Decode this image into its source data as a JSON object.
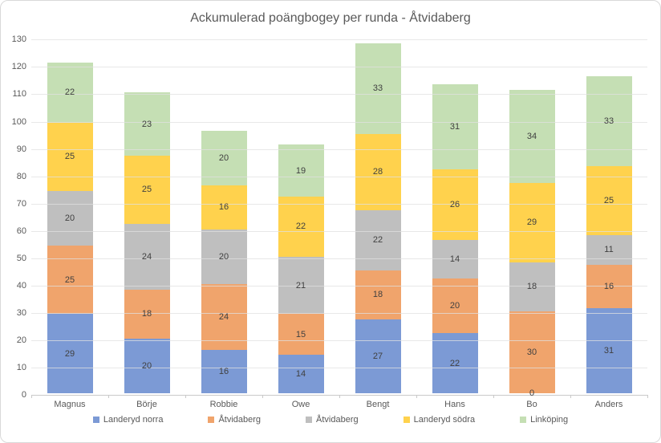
{
  "chart_data": {
    "type": "bar",
    "stacked": true,
    "title": "Ackumulerad poängbogey per runda - Åtvidaberg",
    "categories": [
      "Magnus",
      "Börje",
      "Robbie",
      "Owe",
      "Bengt",
      "Hans",
      "Bo",
      "Anders"
    ],
    "series": [
      {
        "name": "Landeryd norra",
        "color": "#7C9AD5",
        "values": [
          29,
          20,
          16,
          14,
          27,
          22,
          0,
          31
        ]
      },
      {
        "name": "Åtvidaberg",
        "color": "#F0A46C",
        "values": [
          25,
          18,
          24,
          15,
          18,
          20,
          30,
          16
        ]
      },
      {
        "name": "Åtvidaberg",
        "color": "#BFBFBF",
        "values": [
          20,
          24,
          20,
          21,
          22,
          14,
          18,
          11
        ]
      },
      {
        "name": "Landeryd södra",
        "color": "#FFD24D",
        "values": [
          25,
          25,
          16,
          22,
          28,
          26,
          29,
          25
        ]
      },
      {
        "name": "Linköping",
        "color": "#C5DFB4",
        "values": [
          22,
          23,
          20,
          19,
          33,
          31,
          34,
          33
        ]
      }
    ],
    "ylabel": "",
    "xlabel": "",
    "ylim": [
      0,
      130
    ],
    "ytick_step": 10,
    "yticks": [
      "0",
      "10",
      "20",
      "30",
      "40",
      "50",
      "60",
      "70",
      "80",
      "90",
      "100",
      "110",
      "120",
      "130"
    ],
    "grid": true,
    "legend_position": "bottom",
    "data_labels_visible": true
  },
  "colors": {
    "background": "#FFFFFF",
    "border": "#D9D9D9",
    "title_text": "#595959",
    "axis_text": "#595959",
    "segment_label_text": "#404040",
    "gridline_overlay": "rgba(224,224,224,0.75)",
    "axis_line": "#C9C9C9"
  }
}
